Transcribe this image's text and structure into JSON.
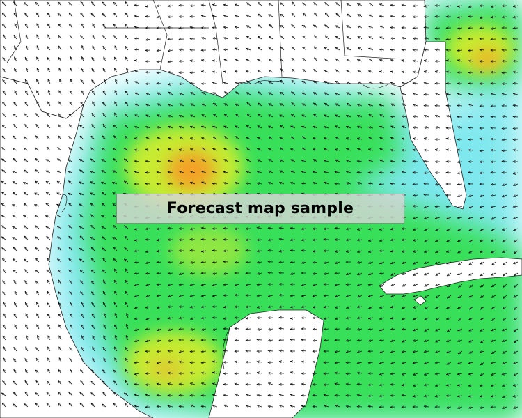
{
  "caption": "Forecast map sample",
  "colors": {
    "background": "#ffffff",
    "low_wind": "#7ee8ee",
    "moderate_wind": "#38e05a",
    "strong_wind": "#c8ec30",
    "high_wind": "#f4a028",
    "arrow": "#111111",
    "coastline": "#222222"
  }
}
